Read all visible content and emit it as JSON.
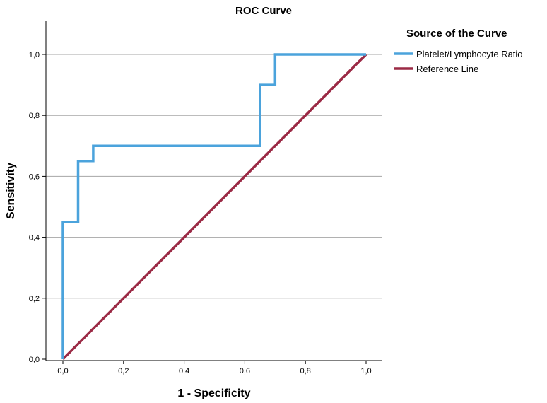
{
  "chart_data": {
    "type": "line",
    "title": "ROC Curve",
    "xlabel": "1 - Specificity",
    "ylabel": "Sensitivity",
    "xlim": [
      0,
      1
    ],
    "ylim": [
      0,
      1.1
    ],
    "x_ticks": [
      0,
      0.2,
      0.4,
      0.6,
      0.8,
      1.0
    ],
    "y_ticks": [
      0,
      0.2,
      0.4,
      0.6,
      0.8,
      1.0
    ],
    "x_tick_labels": [
      "0,0",
      "0,2",
      "0,4",
      "0,6",
      "0,8",
      "1,0"
    ],
    "y_tick_labels": [
      "0,0",
      "0,2",
      "0,4",
      "0,6",
      "0,8",
      "1,0"
    ],
    "grid": "horizontal",
    "legend": {
      "title": "Source of the Curve",
      "placement": "right"
    },
    "series": [
      {
        "name": "Platelet/Lymphocyte Ratio",
        "color": "#4ba3dc",
        "x": [
          0,
          0,
          0.05,
          0.05,
          0.1,
          0.1,
          0.65,
          0.65,
          0.7,
          0.7,
          1.0
        ],
        "y": [
          0,
          0.45,
          0.45,
          0.65,
          0.65,
          0.7,
          0.7,
          0.9,
          0.9,
          1.0,
          1.0
        ]
      },
      {
        "name": "Reference Line",
        "color": "#9b2a45",
        "x": [
          0,
          1.0
        ],
        "y": [
          0,
          1.0
        ]
      }
    ]
  }
}
